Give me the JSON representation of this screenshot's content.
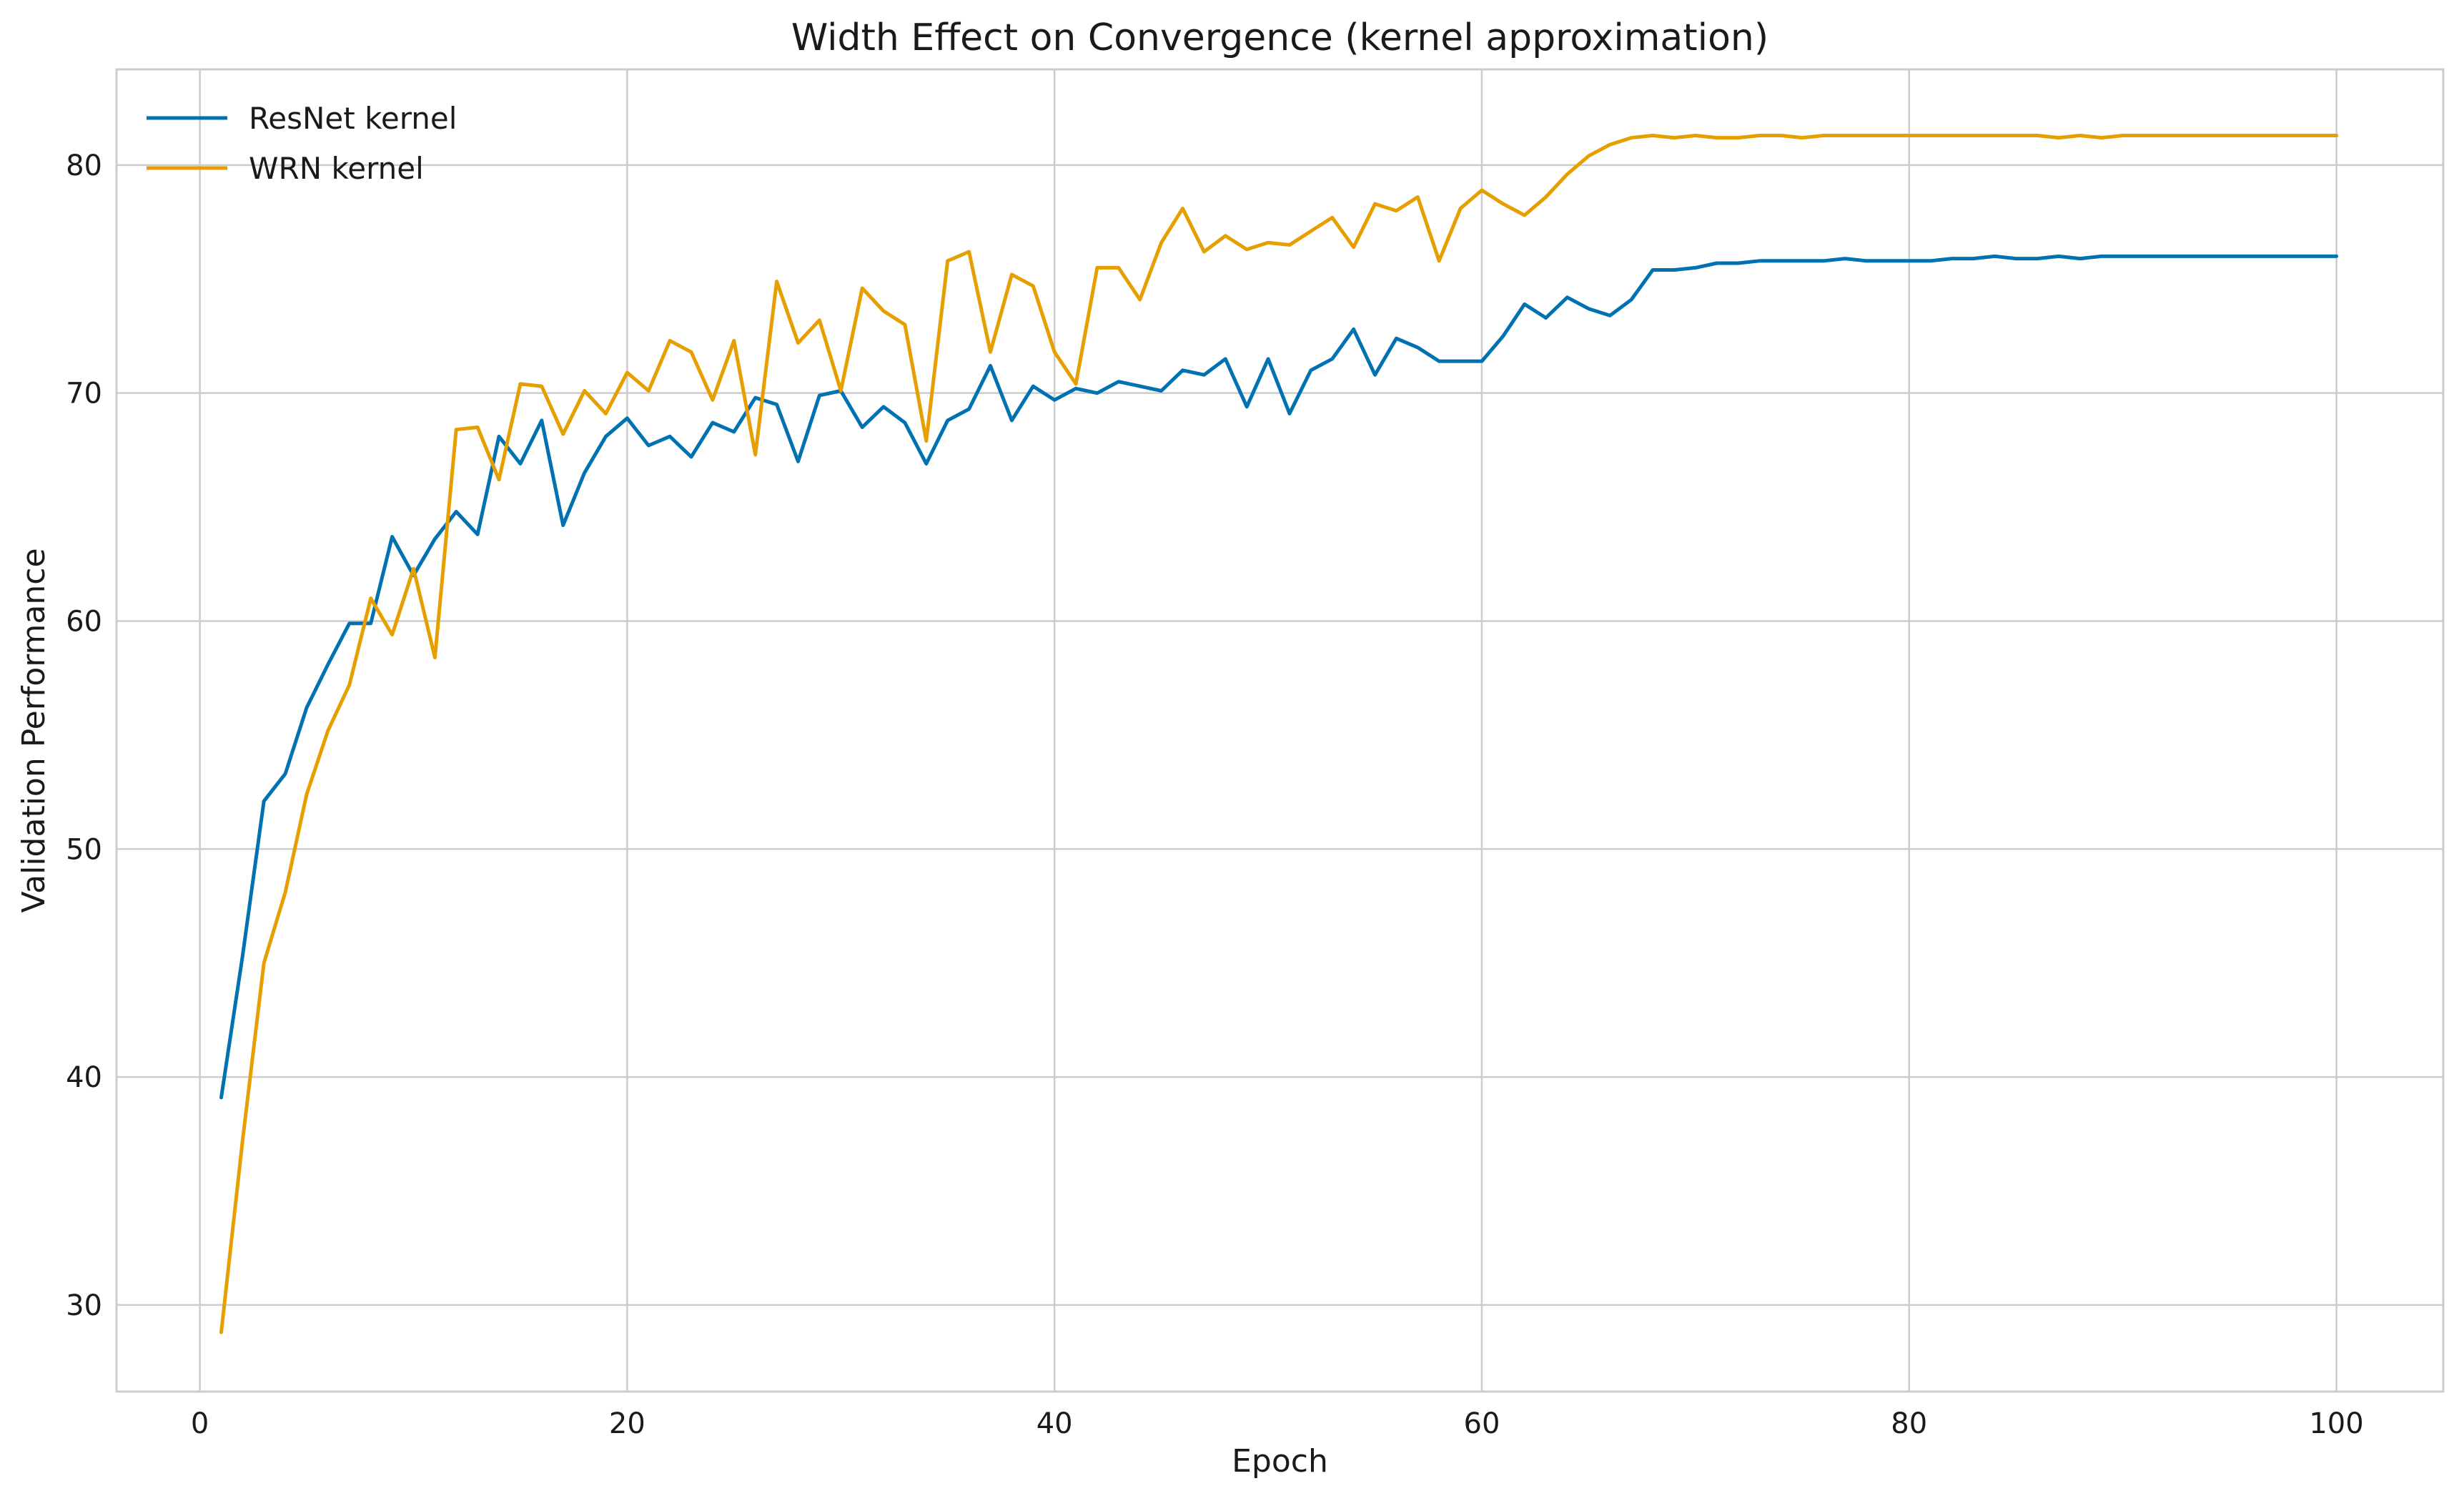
{
  "chart_data": {
    "type": "line",
    "title": "Width Effect on Convergence (kernel approximation)",
    "xlabel": "Epoch",
    "ylabel": "Validation Performance",
    "xlim": [
      -3.9,
      105
    ],
    "ylim": [
      26.2,
      84.2
    ],
    "xticks": [
      0,
      20,
      40,
      60,
      80,
      100
    ],
    "yticks": [
      30,
      40,
      50,
      60,
      70,
      80
    ],
    "grid": true,
    "legend_position": "top-left",
    "series": [
      {
        "name": "ResNet kernel",
        "color": "#0072b2",
        "x": [
          1,
          2,
          3,
          4,
          5,
          6,
          7,
          8,
          9,
          10,
          11,
          12,
          13,
          14,
          15,
          16,
          17,
          18,
          19,
          20,
          21,
          22,
          23,
          24,
          25,
          26,
          27,
          28,
          29,
          30,
          31,
          32,
          33,
          34,
          35,
          36,
          37,
          38,
          39,
          40,
          41,
          42,
          43,
          44,
          45,
          46,
          47,
          48,
          49,
          50,
          51,
          52,
          53,
          54,
          55,
          56,
          57,
          58,
          59,
          60,
          61,
          62,
          63,
          64,
          65,
          66,
          67,
          68,
          69,
          70,
          71,
          72,
          73,
          74,
          75,
          76,
          77,
          78,
          79,
          80,
          81,
          82,
          83,
          84,
          85,
          86,
          87,
          88,
          89,
          90,
          91,
          92,
          93,
          94,
          95,
          96,
          97,
          98,
          99,
          100
        ],
        "values": [
          39.1,
          45.3,
          52.1,
          53.3,
          56.2,
          58.1,
          59.9,
          59.9,
          63.7,
          62.0,
          63.6,
          64.8,
          63.8,
          68.1,
          66.9,
          68.8,
          64.2,
          66.5,
          68.1,
          68.9,
          67.7,
          68.1,
          67.2,
          68.7,
          68.3,
          69.8,
          69.5,
          67.0,
          69.9,
          70.1,
          68.5,
          69.4,
          68.7,
          66.9,
          68.8,
          69.3,
          71.2,
          68.8,
          70.3,
          69.7,
          70.2,
          70.0,
          70.5,
          70.3,
          70.1,
          71.0,
          70.8,
          71.5,
          69.4,
          71.5,
          69.1,
          71.0,
          71.5,
          72.8,
          70.8,
          72.4,
          72.0,
          71.4,
          71.4,
          71.4,
          72.5,
          73.9,
          73.3,
          74.2,
          73.7,
          73.4,
          74.1,
          75.4,
          75.4,
          75.5,
          75.7,
          75.7,
          75.8,
          75.8,
          75.8,
          75.8,
          75.9,
          75.8,
          75.8,
          75.8,
          75.8,
          75.9,
          75.9,
          76.0,
          75.9,
          75.9,
          76.0,
          75.9,
          76.0,
          76.0,
          76.0,
          76.0,
          76.0,
          76.0,
          76.0,
          76.0,
          76.0,
          76.0,
          76.0,
          76.0
        ]
      },
      {
        "name": "WRN kernel",
        "color": "#e69f00",
        "x": [
          1,
          2,
          3,
          4,
          5,
          6,
          7,
          8,
          9,
          10,
          11,
          12,
          13,
          14,
          15,
          16,
          17,
          18,
          19,
          20,
          21,
          22,
          23,
          24,
          25,
          26,
          27,
          28,
          29,
          30,
          31,
          32,
          33,
          34,
          35,
          36,
          37,
          38,
          39,
          40,
          41,
          42,
          43,
          44,
          45,
          46,
          47,
          48,
          49,
          50,
          51,
          52,
          53,
          54,
          55,
          56,
          57,
          58,
          59,
          60,
          61,
          62,
          63,
          64,
          65,
          66,
          67,
          68,
          69,
          70,
          71,
          72,
          73,
          74,
          75,
          76,
          77,
          78,
          79,
          80,
          81,
          82,
          83,
          84,
          85,
          86,
          87,
          88,
          89,
          90,
          91,
          92,
          93,
          94,
          95,
          96,
          97,
          98,
          99,
          100
        ],
        "values": [
          28.8,
          37.2,
          45.0,
          48.1,
          52.4,
          55.2,
          57.2,
          61.0,
          59.4,
          62.3,
          58.4,
          68.4,
          68.5,
          66.2,
          70.4,
          70.3,
          68.2,
          70.1,
          69.1,
          70.9,
          70.1,
          72.3,
          71.8,
          69.7,
          72.3,
          67.3,
          74.9,
          72.2,
          73.2,
          70.1,
          74.6,
          73.6,
          73.0,
          67.9,
          75.8,
          76.2,
          71.8,
          75.2,
          74.7,
          71.8,
          70.4,
          75.5,
          75.5,
          74.1,
          76.6,
          78.1,
          76.2,
          76.9,
          76.3,
          76.6,
          76.5,
          77.1,
          77.7,
          76.4,
          78.3,
          78.0,
          78.6,
          75.8,
          78.1,
          78.9,
          78.3,
          77.8,
          78.6,
          79.6,
          80.4,
          80.9,
          81.2,
          81.3,
          81.2,
          81.3,
          81.2,
          81.2,
          81.3,
          81.3,
          81.2,
          81.3,
          81.3,
          81.3,
          81.3,
          81.3,
          81.3,
          81.3,
          81.3,
          81.3,
          81.3,
          81.3,
          81.2,
          81.3,
          81.2,
          81.3,
          81.3,
          81.3,
          81.3,
          81.3,
          81.3,
          81.3,
          81.3,
          81.3,
          81.3,
          81.3
        ]
      }
    ]
  }
}
